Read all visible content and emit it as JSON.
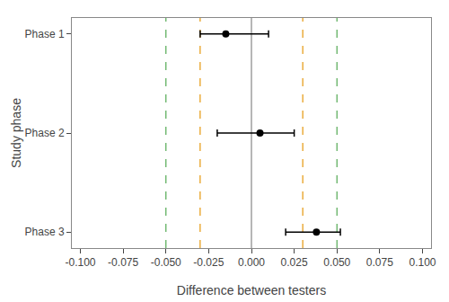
{
  "chart_data": {
    "type": "errorbar",
    "categories": [
      "Phase 1",
      "Phase 2",
      "Phase 3"
    ],
    "values": [
      -0.015,
      0.005,
      0.038
    ],
    "ci_low": [
      -0.03,
      -0.02,
      0.02
    ],
    "ci_high": [
      0.01,
      0.025,
      0.052
    ],
    "color": "black",
    "marker": "circle",
    "xlabel": "Difference between testers",
    "ylabel": "Study phase",
    "xlim": [
      -0.105,
      0.105
    ],
    "xticks": [
      {
        "value": -0.1,
        "label": "-0.100"
      },
      {
        "value": -0.075,
        "label": "-0.075"
      },
      {
        "value": -0.05,
        "label": "-0.050"
      },
      {
        "value": -0.025,
        "label": "-0.025"
      },
      {
        "value": 0.0,
        "label": "0.000"
      },
      {
        "value": 0.025,
        "label": "0.025"
      },
      {
        "value": 0.05,
        "label": "0.050"
      },
      {
        "value": 0.075,
        "label": "0.075"
      },
      {
        "value": 0.1,
        "label": "0.100"
      }
    ],
    "vlines": [
      {
        "value": -0.05,
        "color": "#60B060",
        "line_style": "dashed"
      },
      {
        "value": 0.05,
        "color": "#60B060",
        "line_style": "dashed"
      },
      {
        "value": -0.03,
        "color": "#E8A020",
        "line_style": "dashed"
      },
      {
        "value": 0.03,
        "color": "#E8A020",
        "line_style": "dashed"
      },
      {
        "value": 0.0,
        "color": "#909090",
        "line_style": "solid"
      }
    ],
    "grid": false
  }
}
